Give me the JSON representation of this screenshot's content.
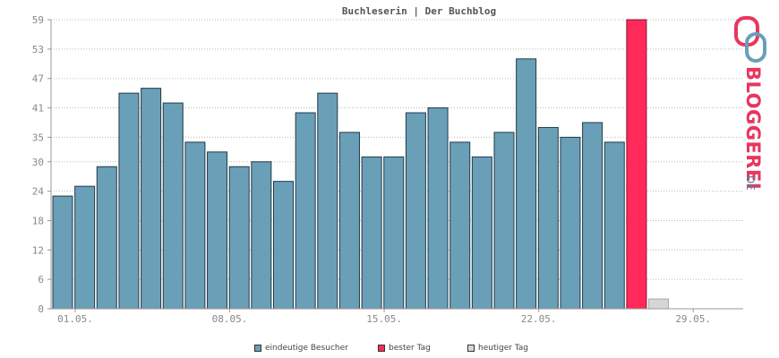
{
  "chart_data": {
    "type": "bar",
    "title": "Buchleserin | Der Buchblog",
    "y_ticks": [
      0,
      6,
      12,
      18,
      24,
      30,
      35,
      41,
      47,
      53,
      59
    ],
    "ylim": [
      0,
      59
    ],
    "x_tick_labels": [
      {
        "label": "01.05.",
        "index": 0
      },
      {
        "label": "08.05.",
        "index": 7
      },
      {
        "label": "15.05.",
        "index": 14
      },
      {
        "label": "22.05.",
        "index": 21
      },
      {
        "label": "29.05.",
        "index": 28
      }
    ],
    "grid": true,
    "legend_position": "bottom",
    "series": [
      {
        "name": "eindeutige Besucher",
        "color": "#6a9fb8",
        "values": [
          23,
          25,
          29,
          44,
          45,
          42,
          34,
          32,
          29,
          30,
          26,
          40,
          44,
          36,
          31,
          31,
          40,
          41,
          34,
          31,
          36,
          51,
          37,
          35,
          38,
          34
        ]
      },
      {
        "name": "bester Tag",
        "color": "#ff2a5a",
        "index": 26,
        "value": 59
      },
      {
        "name": "heutiger Tag",
        "color": "#d6d6d6",
        "index": 27,
        "value": 2
      }
    ]
  },
  "logo": {
    "text": "BLOGGEREI",
    "suffix": ".DE"
  }
}
